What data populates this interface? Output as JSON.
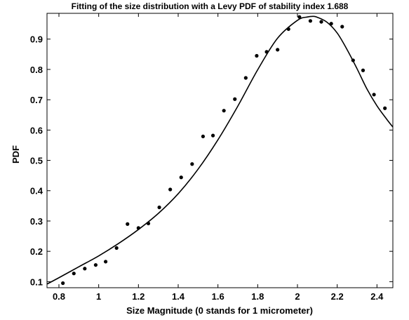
{
  "chart_data": {
    "type": "scatter",
    "title": "Fitting of the size distribution with a Levy PDF of stability index 1.688",
    "xlabel": "Size Magnitude (0 stands for 1 micrometer)",
    "ylabel": "PDF",
    "xlim": [
      0.74,
      2.48
    ],
    "ylim": [
      0.08,
      0.985
    ],
    "xticks": [
      0.8,
      1,
      1.2,
      1.4,
      1.6,
      1.8,
      2,
      2.2,
      2.4
    ],
    "xtick_labels": [
      "0.8",
      "1",
      "1.2",
      "1.4",
      "1.6",
      "1.8",
      "2",
      "2.2",
      "2.4"
    ],
    "yticks": [
      0.1,
      0.2,
      0.3,
      0.4,
      0.5,
      0.6,
      0.7,
      0.8,
      0.9
    ],
    "ytick_labels": [
      "0.1",
      "0.2",
      "0.3",
      "0.4",
      "0.5",
      "0.6",
      "0.7",
      "0.8",
      "0.9"
    ],
    "grid": false,
    "series": [
      {
        "kind": "scatter",
        "color": "#000000",
        "x": [
          0.82,
          0.875,
          0.93,
          0.985,
          1.035,
          1.09,
          1.145,
          1.2,
          1.25,
          1.305,
          1.36,
          1.415,
          1.47,
          1.525,
          1.575,
          1.63,
          1.685,
          1.74,
          1.795,
          1.845,
          1.9,
          1.955,
          2.01,
          2.065,
          2.12,
          2.17,
          2.225,
          2.28,
          2.33,
          2.385,
          2.44
        ],
        "y": [
          0.095,
          0.127,
          0.143,
          0.155,
          0.166,
          0.211,
          0.29,
          0.277,
          0.292,
          0.345,
          0.404,
          0.444,
          0.488,
          0.579,
          0.582,
          0.664,
          0.702,
          0.772,
          0.845,
          0.858,
          0.865,
          0.933,
          0.973,
          0.96,
          0.957,
          0.951,
          0.941,
          0.83,
          0.797,
          0.717,
          0.672
        ]
      },
      {
        "kind": "line",
        "color": "#000000",
        "x": [
          0.74,
          0.8,
          0.9,
          1.0,
          1.1,
          1.2,
          1.3,
          1.4,
          1.5,
          1.6,
          1.7,
          1.8,
          1.9,
          2.0,
          2.05,
          2.08,
          2.1,
          2.15,
          2.2,
          2.25,
          2.3,
          2.35,
          2.4,
          2.45,
          2.48
        ],
        "y": [
          0.092,
          0.113,
          0.149,
          0.185,
          0.226,
          0.272,
          0.325,
          0.39,
          0.471,
          0.568,
          0.679,
          0.799,
          0.903,
          0.962,
          0.973,
          0.975,
          0.972,
          0.955,
          0.92,
          0.865,
          0.802,
          0.735,
          0.68,
          0.635,
          0.61
        ]
      }
    ]
  }
}
